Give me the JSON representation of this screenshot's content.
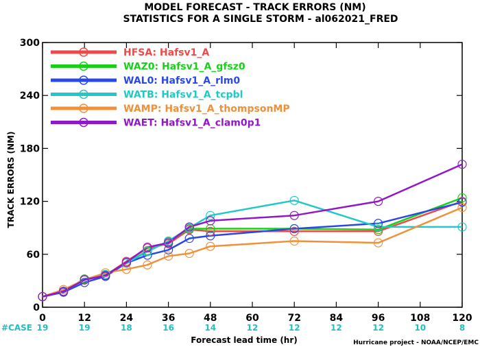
{
  "header": {
    "title_line1": "MODEL FORECAST - TRACK ERRORS (NM)",
    "title_line2": "STATISTICS FOR A SINGLE STORM - al062021_FRED"
  },
  "footer": {
    "credit": "Hurricane project - NOAA/NCEP/EMC"
  },
  "chart_data": {
    "type": "line",
    "title": "MODEL FORECAST - TRACK ERRORS (NM)",
    "subtitle": "STATISTICS FOR A SINGLE STORM - al062021_FRED",
    "xlabel": "Forecast lead time (hr)",
    "ylabel": "TRACK ERRORS (NM)",
    "xlim": [
      0,
      120
    ],
    "ylim": [
      0,
      300
    ],
    "x_ticks": [
      0,
      12,
      24,
      36,
      48,
      60,
      72,
      84,
      96,
      108,
      120
    ],
    "y_ticks": [
      0,
      60,
      120,
      180,
      240,
      300
    ],
    "y_tick_labels": [
      "0",
      "60",
      "120",
      "180",
      "240",
      "300"
    ],
    "legend_position": "top-left",
    "grid": false,
    "cases": {
      "label": "#CASE",
      "x": [
        0,
        12,
        24,
        36,
        48,
        60,
        72,
        84,
        96,
        108,
        120
      ],
      "values": [
        "19",
        "19",
        "18",
        "16",
        "14",
        "12",
        "12",
        "12",
        "12",
        "10",
        "8"
      ],
      "color": "#20c0c0"
    },
    "series": [
      {
        "name": "HFSA: Hafsv1_A",
        "color": "#f04848",
        "x": [
          0,
          6,
          12,
          18,
          24,
          30,
          36,
          42,
          48,
          72,
          96,
          120
        ],
        "y": [
          12,
          18,
          32,
          36,
          52,
          67,
          72,
          88,
          86,
          86,
          86,
          120
        ]
      },
      {
        "name": "WAZ0: Hafsv1_A_gfsz0",
        "color": "#18d018",
        "x": [
          0,
          6,
          12,
          18,
          24,
          30,
          36,
          42,
          48,
          72,
          96,
          120
        ],
        "y": [
          12,
          18,
          32,
          37,
          50,
          64,
          74,
          89,
          89,
          89,
          88,
          124
        ]
      },
      {
        "name": "WAL0: Hafsv1_A_rlm0",
        "color": "#2848e8",
        "x": [
          0,
          6,
          12,
          18,
          24,
          30,
          36,
          42,
          48,
          72,
          96,
          120
        ],
        "y": [
          12,
          17,
          28,
          35,
          50,
          59,
          65,
          78,
          81,
          89,
          95,
          119
        ]
      },
      {
        "name": "WATB: Hafsv1_A_tcpbl",
        "color": "#20c8c8",
        "x": [
          0,
          6,
          12,
          18,
          24,
          30,
          36,
          42,
          48,
          72,
          96,
          120
        ],
        "y": [
          12,
          18,
          31,
          37,
          50,
          63,
          75,
          90,
          104,
          121,
          91,
          91
        ]
      },
      {
        "name": "WAMP: Hafsv1_A_thompsonMP",
        "color": "#f09038",
        "x": [
          0,
          6,
          12,
          18,
          24,
          30,
          36,
          42,
          48,
          72,
          96,
          120
        ],
        "y": [
          12,
          20,
          31,
          39,
          43,
          48,
          58,
          61,
          69,
          75,
          73,
          113
        ]
      },
      {
        "name": "WAET: Hafsv1_A_clam0p1",
        "color": "#9018c8",
        "x": [
          0,
          6,
          12,
          18,
          24,
          30,
          36,
          42,
          48,
          72,
          96,
          120
        ],
        "y": [
          12,
          18,
          31,
          36,
          51,
          68,
          73,
          91,
          98,
          104,
          120,
          162
        ]
      }
    ]
  }
}
